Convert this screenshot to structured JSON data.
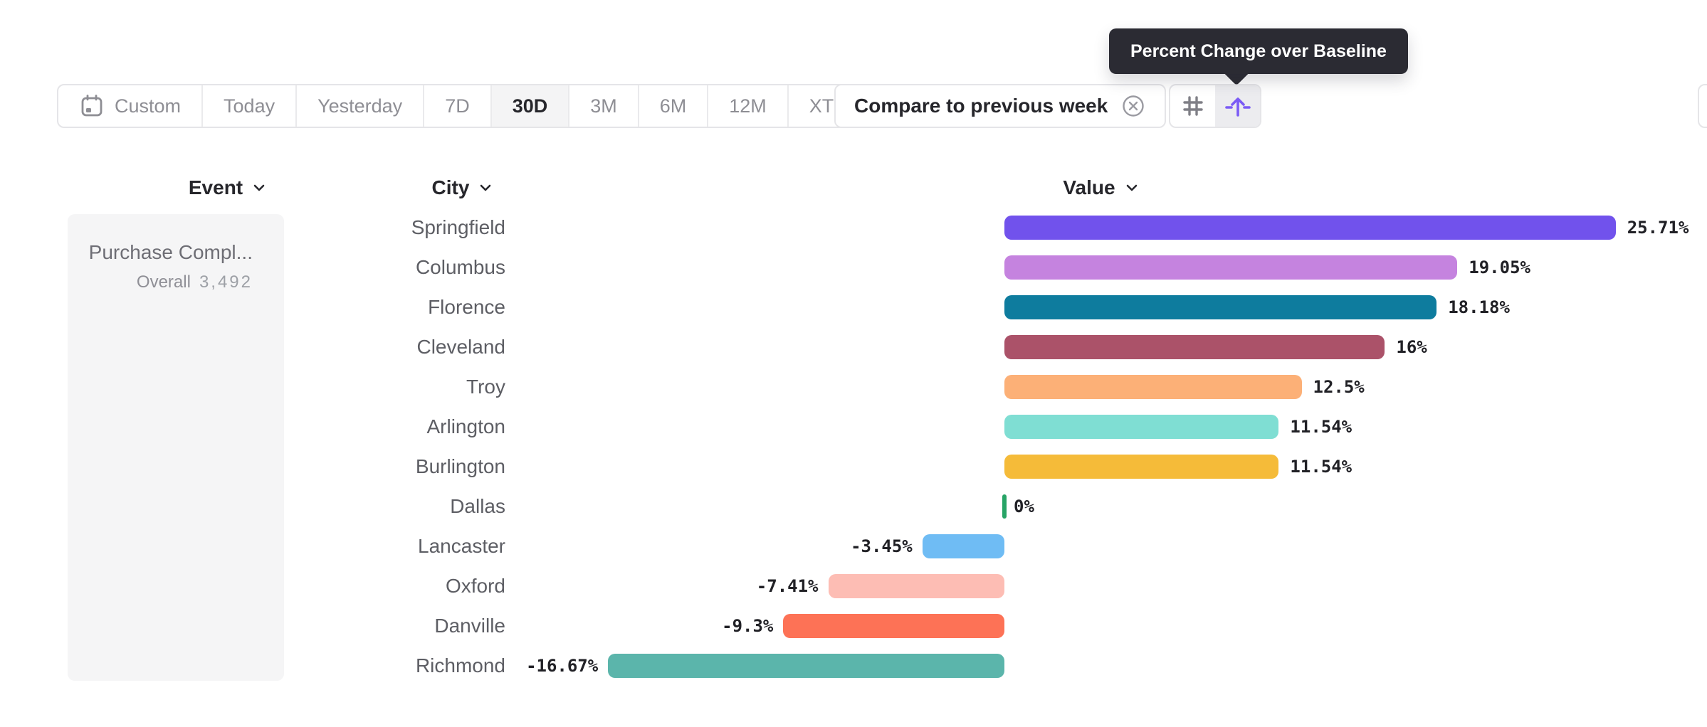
{
  "toolbar": {
    "date_ranges": [
      {
        "label": "Custom",
        "icon": "calendar-icon",
        "selected": false
      },
      {
        "label": "Today",
        "selected": false
      },
      {
        "label": "Yesterday",
        "selected": false
      },
      {
        "label": "7D",
        "selected": false
      },
      {
        "label": "30D",
        "selected": true
      },
      {
        "label": "3M",
        "selected": false
      },
      {
        "label": "6M",
        "selected": false
      },
      {
        "label": "12M",
        "selected": false
      },
      {
        "label": "XTD",
        "chevron": true,
        "selected": false
      }
    ],
    "compare": {
      "label": "Compare to previous week",
      "close_icon": "circle-x-icon"
    },
    "view_toggle": [
      {
        "icon": "hash-grid-icon",
        "selected": false
      },
      {
        "icon": "baseline-lift-icon",
        "selected": true,
        "accent": "#7B5BF5"
      }
    ]
  },
  "tooltip": {
    "text": "Percent Change over Baseline",
    "background": "#2B2B33"
  },
  "columns": {
    "event": "Event",
    "city": "City",
    "value": "Value"
  },
  "event_panel": {
    "event_name": "Purchase Compl...",
    "overall_label": "Overall",
    "overall_value": "3,492"
  },
  "chart_data": {
    "type": "bar",
    "orientation": "horizontal",
    "title": "Percent Change over Baseline",
    "value_format": "percent",
    "xlim": [
      -16.67,
      25.71
    ],
    "categories": [
      "Springfield",
      "Columbus",
      "Florence",
      "Cleveland",
      "Troy",
      "Arlington",
      "Burlington",
      "Dallas",
      "Lancaster",
      "Oxford",
      "Danville",
      "Richmond"
    ],
    "values": [
      25.71,
      19.05,
      18.18,
      16,
      12.5,
      11.54,
      11.54,
      0,
      -3.45,
      -7.41,
      -9.3,
      -16.67
    ],
    "labels": [
      "25.71%",
      "19.05%",
      "18.18%",
      "16%",
      "12.5%",
      "11.54%",
      "11.54%",
      "0%",
      "-3.45%",
      "-7.41%",
      "-9.3%",
      "-16.67%"
    ],
    "colors": [
      "#7152EC",
      "#C583DF",
      "#0E7C9E",
      "#AB5269",
      "#FCB077",
      "#7FDED3",
      "#F5BB39",
      "#27A466",
      "#6FBCF4",
      "#FDBDB4",
      "#FD7256",
      "#5BB5AB"
    ]
  }
}
